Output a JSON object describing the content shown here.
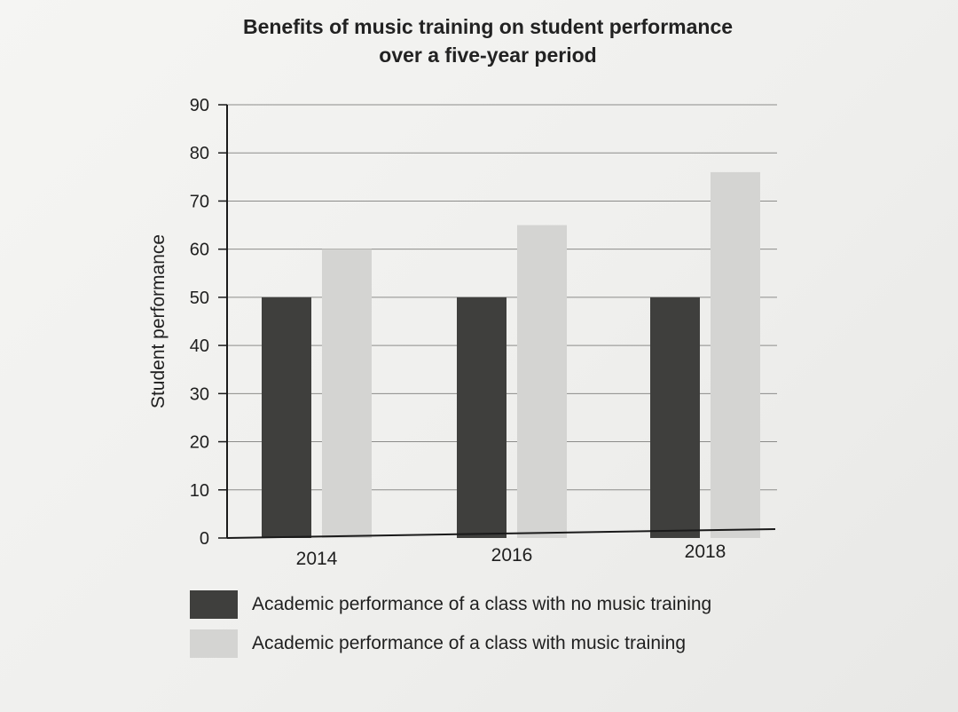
{
  "chart_data": {
    "type": "bar",
    "title_lines": [
      "Benefits of music training on student performance",
      "over a five-year period"
    ],
    "ylabel": "Student performance",
    "xlabel": "",
    "categories": [
      "2014",
      "2016",
      "2018"
    ],
    "ylim": [
      0,
      90
    ],
    "yticks": [
      0,
      10,
      20,
      30,
      40,
      50,
      60,
      70,
      80,
      90
    ],
    "grid": true,
    "legend_position": "bottom",
    "series": [
      {
        "name": "Academic performance of a class with no music training",
        "values": [
          50,
          50,
          50
        ],
        "color": "#3f3f3d"
      },
      {
        "name": "Academic performance of a class with music training",
        "values": [
          60,
          65,
          76
        ],
        "color": "#d4d4d2"
      }
    ]
  }
}
